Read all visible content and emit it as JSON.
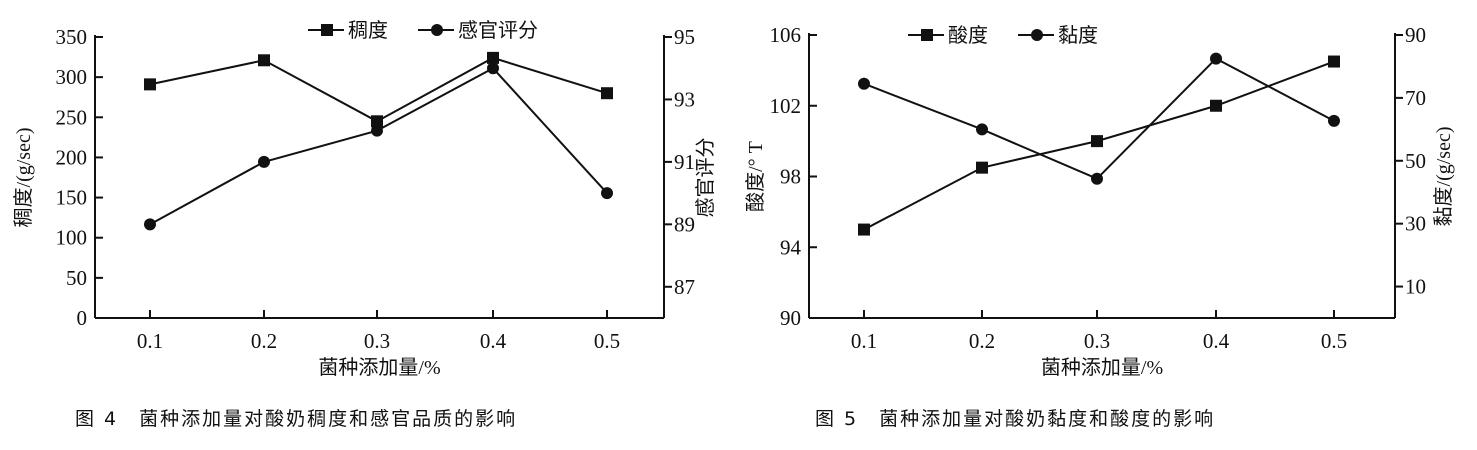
{
  "chart_data": [
    {
      "type": "line",
      "caption": "图 4　菌种添加量对酸奶稠度和感官品质的影响",
      "xlabel": "菌种添加量/%",
      "ylabel": "稠度/(g/sec)",
      "y2label": "感官评分",
      "x": [
        0.1,
        0.2,
        0.3,
        0.4,
        0.5
      ],
      "x_tick_labels": [
        "0.1",
        "0.2",
        "0.3",
        "0.4",
        "0.5"
      ],
      "ylim": [
        0,
        350
      ],
      "y_ticks": [
        0,
        50,
        100,
        150,
        200,
        250,
        300,
        350
      ],
      "y2lim": [
        86,
        95
      ],
      "y2_ticks": [
        87,
        89,
        91,
        93,
        95
      ],
      "grid": false,
      "legend": "top",
      "series": [
        {
          "name": "稠度",
          "axis": "left",
          "marker": "square",
          "values": [
            291,
            321,
            245,
            324,
            280
          ]
        },
        {
          "name": "感官评分",
          "axis": "right",
          "marker": "circle",
          "values": [
            89.0,
            91.0,
            92.0,
            94.0,
            90.0
          ]
        }
      ]
    },
    {
      "type": "line",
      "caption": "图 5　菌种添加量对酸奶黏度和酸度的影响",
      "xlabel": "菌种添加量/%",
      "ylabel": "酸度/° T",
      "y2label": "黏度/(g/sec)",
      "x": [
        0.1,
        0.2,
        0.3,
        0.4,
        0.5
      ],
      "x_tick_labels": [
        "0.1",
        "0.2",
        "0.3",
        "0.4",
        "0.5"
      ],
      "ylim": [
        90,
        106
      ],
      "y_ticks": [
        90,
        94,
        98,
        102,
        106
      ],
      "y2lim": [
        0,
        90
      ],
      "y2_ticks": [
        10,
        30,
        50,
        70,
        90
      ],
      "grid": false,
      "legend": "top",
      "series": [
        {
          "name": "酸度",
          "axis": "left",
          "marker": "square",
          "values": [
            95.0,
            98.5,
            100.0,
            102.0,
            104.5
          ]
        },
        {
          "name": "黏度",
          "axis": "right",
          "marker": "circle",
          "values": [
            74.5,
            60,
            44.3,
            82.5,
            62.7
          ]
        }
      ]
    }
  ]
}
